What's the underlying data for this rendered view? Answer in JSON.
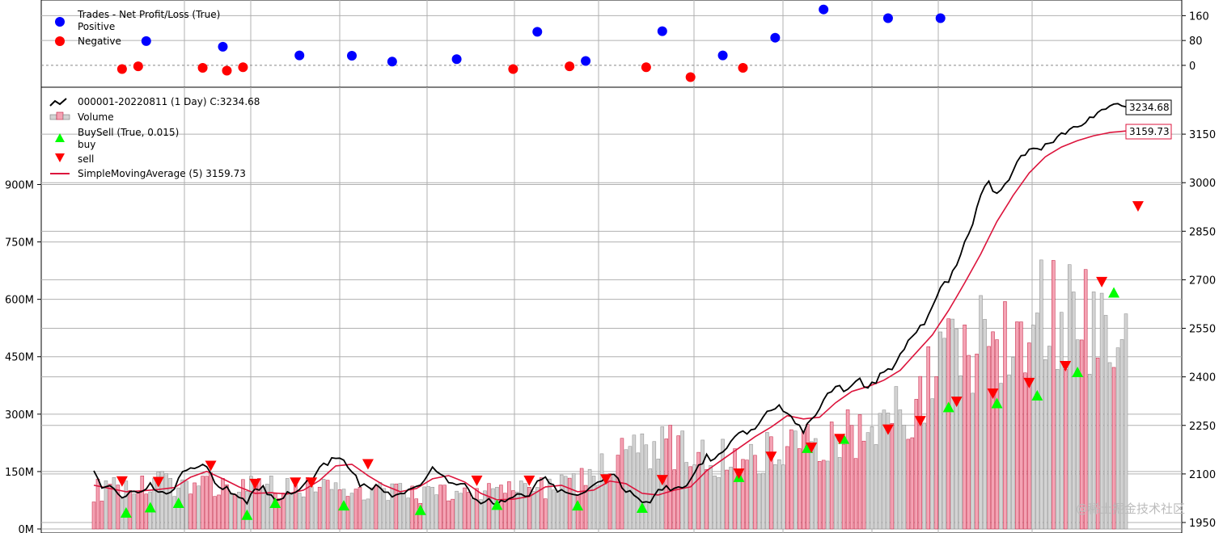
{
  "chart_data": [
    {
      "type": "scatter",
      "panel": "trades",
      "legend": {
        "title": "Trades - Net Profit/Loss (True)",
        "entries": [
          {
            "name": "Positive",
            "color": "#0000ff"
          },
          {
            "name": "Negative",
            "color": "#ff0000"
          }
        ],
        "placement": "top-left"
      },
      "y_ticks": [
        "160",
        "80",
        "0"
      ],
      "ylim": [
        -60,
        200
      ],
      "zero_line": true,
      "positive": {
        "x": [
          13,
          32,
          51,
          64,
          74,
          90,
          110,
          122,
          141,
          156,
          169,
          181,
          197,
          210
        ],
        "y": [
          78,
          60,
          32,
          31,
          12,
          20,
          108,
          14,
          110,
          32,
          89,
          180,
          152,
          152
        ]
      },
      "negative": {
        "x": [
          7,
          11,
          27,
          33,
          37,
          104,
          118,
          137,
          148,
          161
        ],
        "y": [
          -12,
          -3,
          -8,
          -17,
          -6,
          -12,
          -3,
          -6,
          -38,
          -8
        ]
      }
    },
    {
      "type": "line",
      "panel": "price",
      "legend": {
        "entries": [
          {
            "name": "000001-20220811 (1 Day) C:3234.68",
            "color": "#000000",
            "kind": "line"
          },
          {
            "name": "Volume",
            "color": "#f4a3b4",
            "kind": "bar"
          },
          {
            "name": "BuySell (True, 0.015)",
            "kind": "header"
          },
          {
            "name": "buy",
            "color": "#00ff00",
            "kind": "up-marker"
          },
          {
            "name": "sell",
            "color": "#ff0000",
            "kind": "down-marker"
          },
          {
            "name": "SimpleMovingAverage (5) 3159.73",
            "color": "#dc143c",
            "kind": "line"
          }
        ],
        "placement": "top-left"
      },
      "y_ticks_right": [
        "3150",
        "3000",
        "2850",
        "2700",
        "2550",
        "2400",
        "2250",
        "2100",
        "1950"
      ],
      "ylim": [
        1930,
        3290
      ],
      "volume_ticks_left": [
        "900M",
        "750M",
        "600M",
        "450M",
        "300M",
        "150M",
        "0M"
      ],
      "volume_ylim": [
        0,
        1150
      ],
      "last_labels": {
        "close": "3234.68",
        "sma": "3159.73"
      },
      "close_anchors": [
        [
          0,
          2110
        ],
        [
          2,
          2065
        ],
        [
          4,
          2060
        ],
        [
          6,
          2035
        ],
        [
          8,
          2030
        ],
        [
          10,
          2055
        ],
        [
          12,
          2040
        ],
        [
          14,
          2065
        ],
        [
          16,
          2050
        ],
        [
          18,
          2040
        ],
        [
          20,
          2060
        ],
        [
          22,
          2100
        ],
        [
          24,
          2110
        ],
        [
          26,
          2120
        ],
        [
          28,
          2125
        ],
        [
          30,
          2070
        ],
        [
          32,
          2060
        ],
        [
          34,
          2045
        ],
        [
          36,
          2025
        ],
        [
          38,
          2010
        ],
        [
          40,
          2050
        ],
        [
          42,
          2055
        ],
        [
          44,
          2030
        ],
        [
          46,
          2020
        ],
        [
          48,
          2040
        ],
        [
          50,
          2045
        ],
        [
          52,
          2060
        ],
        [
          54,
          2085
        ],
        [
          56,
          2115
        ],
        [
          58,
          2135
        ],
        [
          60,
          2155
        ],
        [
          62,
          2140
        ],
        [
          64,
          2110
        ],
        [
          66,
          2070
        ],
        [
          68,
          2060
        ],
        [
          70,
          2060
        ],
        [
          72,
          2045
        ],
        [
          74,
          2030
        ],
        [
          76,
          2040
        ],
        [
          78,
          2050
        ],
        [
          80,
          2065
        ],
        [
          82,
          2080
        ],
        [
          84,
          2120
        ],
        [
          86,
          2100
        ],
        [
          88,
          2075
        ],
        [
          90,
          2070
        ],
        [
          92,
          2065
        ],
        [
          94,
          2030
        ],
        [
          96,
          2010
        ],
        [
          98,
          2020
        ],
        [
          100,
          2010
        ],
        [
          102,
          2020
        ],
        [
          104,
          2030
        ],
        [
          106,
          2030
        ],
        [
          108,
          2040
        ],
        [
          110,
          2070
        ],
        [
          112,
          2085
        ],
        [
          114,
          2060
        ],
        [
          116,
          2045
        ],
        [
          118,
          2035
        ],
        [
          120,
          2030
        ],
        [
          122,
          2045
        ],
        [
          124,
          2065
        ],
        [
          126,
          2085
        ],
        [
          128,
          2100
        ],
        [
          130,
          2080
        ],
        [
          132,
          2050
        ],
        [
          134,
          2030
        ],
        [
          136,
          2020
        ],
        [
          138,
          2020
        ],
        [
          140,
          2045
        ],
        [
          142,
          2060
        ],
        [
          144,
          2055
        ],
        [
          146,
          2050
        ],
        [
          148,
          2080
        ],
        [
          150,
          2125
        ],
        [
          152,
          2155
        ],
        [
          154,
          2140
        ],
        [
          156,
          2165
        ],
        [
          158,
          2205
        ],
        [
          160,
          2220
        ],
        [
          162,
          2230
        ],
        [
          164,
          2245
        ],
        [
          166,
          2280
        ],
        [
          168,
          2300
        ],
        [
          170,
          2310
        ],
        [
          172,
          2290
        ],
        [
          174,
          2255
        ],
        [
          176,
          2230
        ],
        [
          178,
          2265
        ],
        [
          180,
          2305
        ],
        [
          182,
          2345
        ],
        [
          184,
          2370
        ],
        [
          186,
          2360
        ],
        [
          188,
          2380
        ],
        [
          190,
          2390
        ],
        [
          192,
          2365
        ],
        [
          194,
          2385
        ],
        [
          196,
          2420
        ],
        [
          198,
          2430
        ],
        [
          200,
          2465
        ],
        [
          202,
          2510
        ],
        [
          204,
          2540
        ],
        [
          206,
          2570
        ],
        [
          208,
          2620
        ],
        [
          210,
          2680
        ],
        [
          212,
          2700
        ],
        [
          214,
          2740
        ],
        [
          216,
          2820
        ],
        [
          218,
          2880
        ],
        [
          220,
          2960
        ],
        [
          222,
          3000
        ],
        [
          224,
          2960
        ],
        [
          226,
          2990
        ],
        [
          228,
          3040
        ],
        [
          230,
          3080
        ],
        [
          232,
          3100
        ],
        [
          234,
          3100
        ],
        [
          236,
          3120
        ],
        [
          238,
          3130
        ],
        [
          240,
          3150
        ],
        [
          242,
          3160
        ],
        [
          244,
          3175
        ],
        [
          246,
          3190
        ],
        [
          248,
          3210
        ],
        [
          250,
          3230
        ],
        [
          252,
          3240
        ],
        [
          254,
          3250
        ],
        [
          256,
          3234.68
        ]
      ],
      "sma_anchors": [
        [
          0,
          2065
        ],
        [
          4,
          2055
        ],
        [
          8,
          2045
        ],
        [
          12,
          2048
        ],
        [
          16,
          2052
        ],
        [
          20,
          2058
        ],
        [
          24,
          2090
        ],
        [
          28,
          2108
        ],
        [
          32,
          2085
        ],
        [
          36,
          2060
        ],
        [
          40,
          2040
        ],
        [
          44,
          2042
        ],
        [
          48,
          2038
        ],
        [
          52,
          2050
        ],
        [
          56,
          2080
        ],
        [
          60,
          2125
        ],
        [
          64,
          2130
        ],
        [
          68,
          2095
        ],
        [
          72,
          2065
        ],
        [
          76,
          2045
        ],
        [
          80,
          2055
        ],
        [
          84,
          2085
        ],
        [
          88,
          2095
        ],
        [
          92,
          2075
        ],
        [
          96,
          2040
        ],
        [
          100,
          2020
        ],
        [
          104,
          2022
        ],
        [
          108,
          2030
        ],
        [
          112,
          2060
        ],
        [
          116,
          2065
        ],
        [
          120,
          2045
        ],
        [
          124,
          2050
        ],
        [
          128,
          2078
        ],
        [
          132,
          2070
        ],
        [
          136,
          2040
        ],
        [
          140,
          2035
        ],
        [
          144,
          2050
        ],
        [
          148,
          2060
        ],
        [
          152,
          2110
        ],
        [
          156,
          2145
        ],
        [
          160,
          2180
        ],
        [
          164,
          2215
        ],
        [
          168,
          2245
        ],
        [
          172,
          2280
        ],
        [
          176,
          2270
        ],
        [
          180,
          2275
        ],
        [
          184,
          2320
        ],
        [
          188,
          2355
        ],
        [
          192,
          2370
        ],
        [
          196,
          2390
        ],
        [
          200,
          2420
        ],
        [
          204,
          2475
        ],
        [
          208,
          2530
        ],
        [
          212,
          2605
        ],
        [
          216,
          2690
        ],
        [
          220,
          2780
        ],
        [
          224,
          2880
        ],
        [
          228,
          2960
        ],
        [
          232,
          3030
        ],
        [
          236,
          3080
        ],
        [
          240,
          3110
        ],
        [
          244,
          3130
        ],
        [
          248,
          3145
        ],
        [
          252,
          3155
        ],
        [
          256,
          3159.73
        ]
      ],
      "volume_anchors": [
        [
          0,
          100
        ],
        [
          20,
          120
        ],
        [
          40,
          110
        ],
        [
          60,
          110
        ],
        [
          80,
          90
        ],
        [
          100,
          100
        ],
        [
          120,
          120
        ],
        [
          130,
          180
        ],
        [
          140,
          220
        ],
        [
          150,
          200
        ],
        [
          160,
          180
        ],
        [
          170,
          220
        ],
        [
          180,
          240
        ],
        [
          190,
          260
        ],
        [
          200,
          300
        ],
        [
          210,
          420
        ],
        [
          220,
          520
        ],
        [
          230,
          550
        ],
        [
          240,
          600
        ],
        [
          250,
          520
        ],
        [
          256,
          480
        ]
      ],
      "buy_markers": {
        "x": [
          8,
          14,
          21,
          38,
          45,
          62,
          81,
          100,
          120,
          136,
          160,
          177,
          186,
          212,
          224,
          234,
          244,
          253
        ],
        "y": [
          1980,
          1996,
          2010,
          1973,
          2010,
          2002,
          1988,
          2004,
          2002,
          1995,
          2090,
          2180,
          2208,
          2306,
          2318,
          2342,
          2414,
          2660
        ]
      },
      "sell_markers": {
        "x": [
          7,
          16,
          29,
          40,
          50,
          54,
          68,
          95,
          108,
          127,
          141,
          160,
          168,
          178,
          185,
          197,
          205,
          214,
          223,
          232,
          241,
          250,
          259
        ],
        "y": [
          2078,
          2076,
          2126,
          2070,
          2074,
          2074,
          2131,
          2080,
          2080,
          2084,
          2082,
          2102,
          2154,
          2182,
          2209,
          2238,
          2264,
          2324,
          2349,
          2382,
          2434,
          2694,
          2928
        ]
      }
    }
  ],
  "watermark": "@稀土掘金技术社区"
}
